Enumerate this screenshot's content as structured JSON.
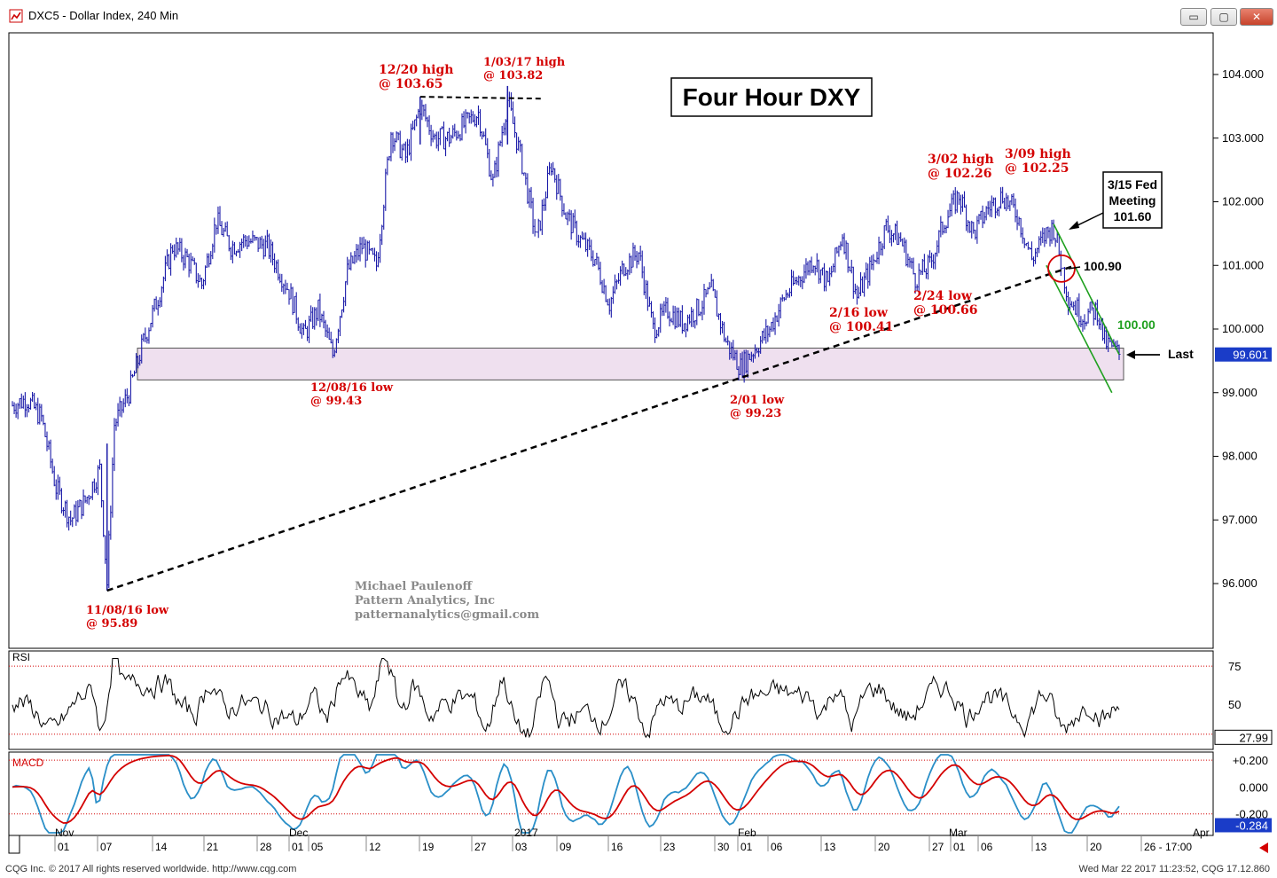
{
  "window": {
    "title": "DXC5 - Dollar Index, 240 Min",
    "buttons": [
      "minimize",
      "restore",
      "close"
    ],
    "button_glyphs": {
      "minimize": "▭",
      "restore": "▢",
      "close": "✕"
    }
  },
  "footer": {
    "copyright": "CQG Inc. © 2017 All rights reserved worldwide. http://www.cqg.com",
    "timestamp": "Wed Mar 22 2017 11:23:52, CQG 17.12.860"
  },
  "watermark": [
    "Michael Paulenoff",
    "Pattern Analytics, Inc",
    "patternanalytics@gmail.com"
  ],
  "colors": {
    "price": "#1a1aa8",
    "annotation": "#d40000",
    "trend": "#000000",
    "channel": "#1fa01f",
    "macd_line": "#2a8fc8",
    "macd_signal": "#d40000",
    "band": "#efe0ef"
  },
  "chart_data": [
    {
      "type": "line",
      "name": "price",
      "title": "Four Hour DXY",
      "ylim": [
        95.2,
        104.7
      ],
      "yticks": [
        104.0,
        103.0,
        102.0,
        101.0,
        100.0,
        99.0,
        98.0,
        97.0,
        96.0
      ],
      "ytick_labels": [
        "104.000",
        "103.000",
        "102.000",
        "101.000",
        "100.000",
        "99.000",
        "98.000",
        "97.000",
        "96.000"
      ],
      "last_value": "99.601",
      "x_day_range": [
        0,
        152
      ],
      "anchors": [
        [
          0,
          98.8
        ],
        [
          2,
          98.9
        ],
        [
          4,
          98.6
        ],
        [
          6,
          97.5
        ],
        [
          8,
          97.0
        ],
        [
          10,
          97.3
        ],
        [
          12,
          97.8
        ],
        [
          13,
          96.0
        ],
        [
          14,
          98.5
        ],
        [
          16,
          99.0
        ],
        [
          18,
          99.8
        ],
        [
          20,
          100.5
        ],
        [
          22,
          101.3
        ],
        [
          24,
          101.1
        ],
        [
          26,
          100.7
        ],
        [
          28,
          101.7
        ],
        [
          30,
          101.3
        ],
        [
          32,
          101.4
        ],
        [
          35,
          101.3
        ],
        [
          38,
          100.6
        ],
        [
          40,
          99.9
        ],
        [
          42,
          100.3
        ],
        [
          44,
          99.6
        ],
        [
          46,
          100.9
        ],
        [
          48,
          101.3
        ],
        [
          50,
          101.0
        ],
        [
          52,
          103.1
        ],
        [
          54,
          102.7
        ],
        [
          56,
          103.5
        ],
        [
          58,
          103.0
        ],
        [
          60,
          103.0
        ],
        [
          62,
          103.2
        ],
        [
          64,
          103.4
        ],
        [
          66,
          102.3
        ],
        [
          68,
          103.6
        ],
        [
          70,
          102.6
        ],
        [
          72,
          101.4
        ],
        [
          74,
          102.6
        ],
        [
          76,
          101.8
        ],
        [
          78,
          101.4
        ],
        [
          80,
          101.1
        ],
        [
          82,
          100.4
        ],
        [
          84,
          101.0
        ],
        [
          86,
          101.2
        ],
        [
          88,
          100.0
        ],
        [
          90,
          100.3
        ],
        [
          92,
          100.1
        ],
        [
          94,
          100.3
        ],
        [
          96,
          100.6
        ],
        [
          98,
          99.8
        ],
        [
          100,
          99.4
        ],
        [
          102,
          99.7
        ],
        [
          104,
          100.0
        ],
        [
          106,
          100.5
        ],
        [
          108,
          100.8
        ],
        [
          110,
          101.1
        ],
        [
          112,
          100.7
        ],
        [
          114,
          101.5
        ],
        [
          116,
          100.5
        ],
        [
          118,
          101.0
        ],
        [
          120,
          101.6
        ],
        [
          122,
          101.4
        ],
        [
          124,
          100.8
        ],
        [
          126,
          101.0
        ],
        [
          128,
          101.7
        ],
        [
          130,
          102.1
        ],
        [
          132,
          101.5
        ],
        [
          134,
          101.9
        ],
        [
          136,
          102.1
        ],
        [
          138,
          101.8
        ],
        [
          140,
          101.1
        ],
        [
          142,
          101.5
        ],
        [
          143,
          101.6
        ],
        [
          145,
          100.5
        ],
        [
          147,
          100.2
        ],
        [
          149,
          100.3
        ],
        [
          150,
          99.8
        ],
        [
          152,
          99.6
        ]
      ],
      "annotations": [
        {
          "lines": [
            "12/20 high",
            "@ 103.65"
          ],
          "bold": true
        },
        {
          "lines": [
            "1/03/17 high",
            "@ 103.82"
          ],
          "bold": false
        },
        {
          "lines": [
            "3/02 high",
            "@ 102.26"
          ],
          "bold": true
        },
        {
          "lines": [
            "3/09 high",
            "@ 102.25"
          ],
          "bold": true
        },
        {
          "lines": [
            "2/16 low",
            "@ 100.41"
          ],
          "bold": true
        },
        {
          "lines": [
            "2/24 low",
            "@ 100.66"
          ],
          "bold": true
        },
        {
          "lines": [
            "12/08/16 low",
            "@ 99.43"
          ],
          "bold": false
        },
        {
          "lines": [
            "2/01 low",
            "@ 99.23"
          ],
          "bold": false
        },
        {
          "lines": [
            "11/08/16 low",
            "@ 95.89"
          ],
          "bold": false
        }
      ],
      "callouts": {
        "fed": [
          "3/15 Fed",
          "Meeting",
          "101.60"
        ],
        "level1": "100.90",
        "level2": "100.00",
        "last": "Last"
      },
      "support_zone": [
        99.2,
        99.7
      ],
      "trendline": [
        [
          13,
          95.89
        ],
        [
          102,
          99.23
        ],
        [
          146,
          101.0
        ]
      ],
      "double_top_line": [
        [
          56,
          103.65
        ],
        [
          73,
          103.62
        ]
      ],
      "channel": {
        "upper": [
          [
            143,
            101.65
          ],
          [
            152,
            99.6
          ]
        ],
        "lower": [
          [
            142,
            101.0
          ],
          [
            151,
            99.0
          ]
        ]
      }
    },
    {
      "type": "line",
      "name": "RSI",
      "title": "RSI",
      "yticks": [
        75,
        50
      ],
      "last_value": "27.99",
      "ylim": [
        20,
        85
      ]
    },
    {
      "type": "line",
      "name": "MACD",
      "title": "MACD",
      "ytick_labels": [
        "+0.200",
        "0.000",
        "-0.200"
      ],
      "last_value": "-0.284",
      "ylim": [
        -0.36,
        0.26
      ]
    }
  ],
  "x_axis": {
    "months": [
      "Nov",
      "Dec",
      "2017",
      "Feb",
      "Mar",
      "Apr"
    ],
    "days": [
      "01",
      "07",
      "14",
      "21",
      "28",
      "01",
      "05",
      "12",
      "19",
      "27",
      "03",
      "09",
      "16",
      "23",
      "30",
      "01",
      "06",
      "13",
      "20",
      "27",
      "01",
      "06",
      "13",
      "20",
      "26 - 17:00"
    ]
  }
}
